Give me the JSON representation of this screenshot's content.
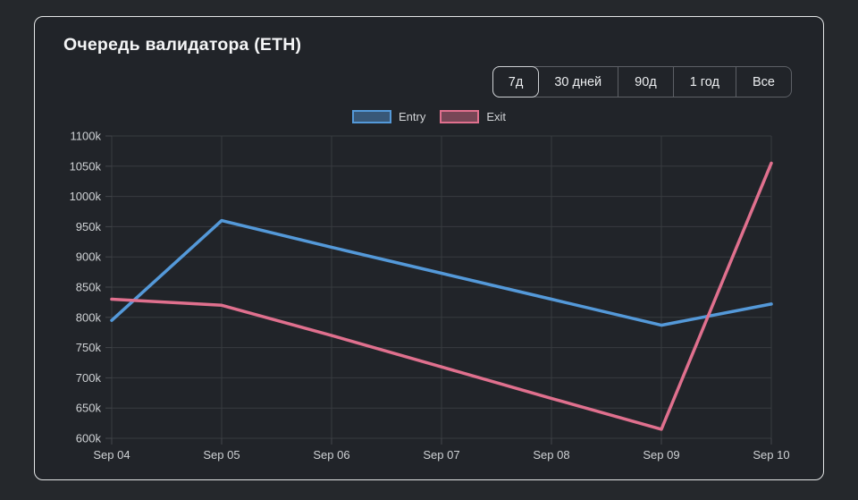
{
  "header": {
    "title": "Очередь валидатора (ETH)"
  },
  "range_buttons": {
    "items": [
      {
        "key": "7d",
        "label": "7д",
        "selected": true
      },
      {
        "key": "30d",
        "label": "30 дней",
        "selected": false
      },
      {
        "key": "90d",
        "label": "90д",
        "selected": false
      },
      {
        "key": "1y",
        "label": "1 год",
        "selected": false
      },
      {
        "key": "all",
        "label": "Все",
        "selected": false
      }
    ]
  },
  "chart_data": {
    "type": "line",
    "title": "Очередь валидатора (ETH)",
    "x": [
      "Sep 04",
      "Sep 05",
      "Sep 06",
      "Sep 07",
      "Sep 08",
      "Sep 09",
      "Sep 10"
    ],
    "series": [
      {
        "name": "Entry",
        "color": "#5499d9",
        "fill": "rgba(84,153,217,0.45)",
        "values": [
          795000,
          960000,
          916000,
          873000,
          830000,
          787000,
          822000
        ]
      },
      {
        "name": "Exit",
        "color": "#e0708e",
        "fill": "rgba(224,112,142,0.45)",
        "values": [
          830000,
          820000,
          770000,
          718000,
          666000,
          615000,
          1055000
        ]
      }
    ],
    "ylim": [
      600000,
      1100000
    ],
    "ytick_step": 50000,
    "ytick_labels": [
      "600k",
      "650k",
      "700k",
      "750k",
      "800k",
      "850k",
      "900k",
      "950k",
      "1000k",
      "1050k",
      "1100k"
    ],
    "xlabel": "",
    "ylabel": "",
    "grid": true,
    "legend_position": "top"
  }
}
